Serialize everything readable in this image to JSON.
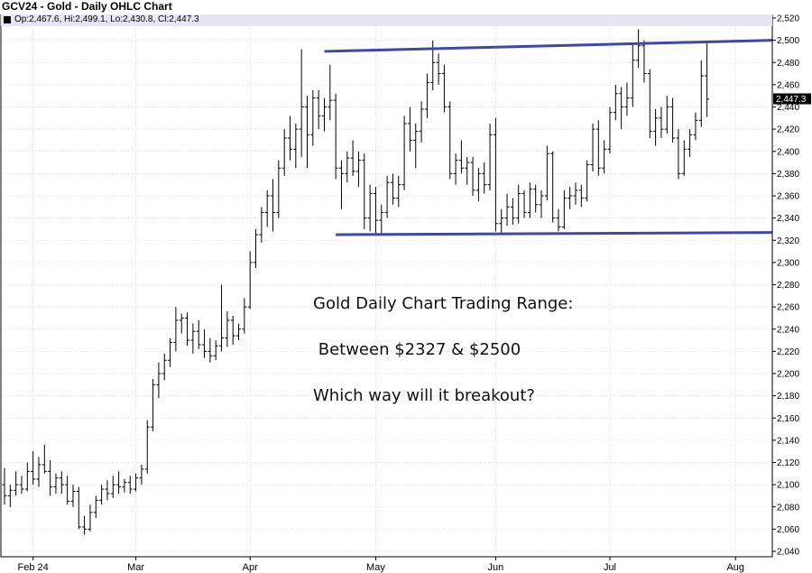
{
  "header": {
    "title": "GCV24 - Gold - Daily OHLC Chart",
    "info": "Op:2,467.6, Hi:2,499.1, Lo:2,430.8, Cl:2,447.3"
  },
  "annotations": {
    "line1": "Gold Daily Chart Trading Range:",
    "line2": " Between $2327 & $2500",
    "line3": "Which way will it breakout?"
  },
  "colors": {
    "bars": "#000000",
    "trendline": "#3f48a8",
    "info_strip": "#e6e6f2",
    "grid": "#c8c8c8"
  },
  "chart_data": {
    "type": "ohlc",
    "title": "GCV24 - Gold - Daily OHLC Chart",
    "ylim": [
      2040,
      2520
    ],
    "y_ticks": [
      2040,
      2060,
      2080,
      2100,
      2120,
      2140,
      2160,
      2180,
      2200,
      2220,
      2240,
      2260,
      2280,
      2300,
      2320,
      2340,
      2360,
      2380,
      2400,
      2420,
      2440,
      2460,
      2480,
      2500,
      2520
    ],
    "x_ticks": [
      {
        "label": "Feb 24",
        "index": 5
      },
      {
        "label": "Mar",
        "index": 23
      },
      {
        "label": "Apr",
        "index": 43
      },
      {
        "label": "May",
        "index": 65
      },
      {
        "label": "Jun",
        "index": 86
      },
      {
        "label": "Jul",
        "index": 106
      },
      {
        "label": "Aug",
        "index": 128
      }
    ],
    "last_price": "2,447.3",
    "grid": true,
    "bars": [
      {
        "o": 2100,
        "h": 2115,
        "l": 2082,
        "c": 2090
      },
      {
        "o": 2090,
        "h": 2100,
        "l": 2080,
        "c": 2095
      },
      {
        "o": 2095,
        "h": 2112,
        "l": 2090,
        "c": 2100
      },
      {
        "o": 2100,
        "h": 2108,
        "l": 2092,
        "c": 2096
      },
      {
        "o": 2096,
        "h": 2120,
        "l": 2094,
        "c": 2112
      },
      {
        "o": 2112,
        "h": 2130,
        "l": 2100,
        "c": 2105
      },
      {
        "o": 2105,
        "h": 2125,
        "l": 2098,
        "c": 2118
      },
      {
        "o": 2118,
        "h": 2136,
        "l": 2110,
        "c": 2112
      },
      {
        "o": 2112,
        "h": 2122,
        "l": 2090,
        "c": 2098
      },
      {
        "o": 2098,
        "h": 2110,
        "l": 2092,
        "c": 2106
      },
      {
        "o": 2106,
        "h": 2112,
        "l": 2092,
        "c": 2100
      },
      {
        "o": 2100,
        "h": 2108,
        "l": 2082,
        "c": 2085
      },
      {
        "o": 2085,
        "h": 2100,
        "l": 2080,
        "c": 2094
      },
      {
        "o": 2094,
        "h": 2098,
        "l": 2060,
        "c": 2062
      },
      {
        "o": 2062,
        "h": 2072,
        "l": 2055,
        "c": 2060
      },
      {
        "o": 2060,
        "h": 2082,
        "l": 2058,
        "c": 2075
      },
      {
        "o": 2075,
        "h": 2090,
        "l": 2070,
        "c": 2086
      },
      {
        "o": 2086,
        "h": 2100,
        "l": 2082,
        "c": 2096
      },
      {
        "o": 2096,
        "h": 2104,
        "l": 2086,
        "c": 2092
      },
      {
        "o": 2092,
        "h": 2108,
        "l": 2088,
        "c": 2100
      },
      {
        "o": 2100,
        "h": 2112,
        "l": 2092,
        "c": 2098
      },
      {
        "o": 2098,
        "h": 2105,
        "l": 2093,
        "c": 2102
      },
      {
        "o": 2102,
        "h": 2108,
        "l": 2092,
        "c": 2096
      },
      {
        "o": 2096,
        "h": 2110,
        "l": 2094,
        "c": 2106
      },
      {
        "o": 2106,
        "h": 2118,
        "l": 2100,
        "c": 2114
      },
      {
        "o": 2114,
        "h": 2158,
        "l": 2110,
        "c": 2152
      },
      {
        "o": 2152,
        "h": 2195,
        "l": 2148,
        "c": 2190
      },
      {
        "o": 2190,
        "h": 2210,
        "l": 2178,
        "c": 2200
      },
      {
        "o": 2200,
        "h": 2218,
        "l": 2194,
        "c": 2212
      },
      {
        "o": 2212,
        "h": 2232,
        "l": 2206,
        "c": 2228
      },
      {
        "o": 2228,
        "h": 2260,
        "l": 2220,
        "c": 2248
      },
      {
        "o": 2248,
        "h": 2254,
        "l": 2236,
        "c": 2250
      },
      {
        "o": 2250,
        "h": 2255,
        "l": 2225,
        "c": 2230
      },
      {
        "o": 2230,
        "h": 2245,
        "l": 2218,
        "c": 2238
      },
      {
        "o": 2238,
        "h": 2248,
        "l": 2222,
        "c": 2226
      },
      {
        "o": 2226,
        "h": 2240,
        "l": 2214,
        "c": 2220
      },
      {
        "o": 2220,
        "h": 2232,
        "l": 2210,
        "c": 2216
      },
      {
        "o": 2216,
        "h": 2230,
        "l": 2212,
        "c": 2225
      },
      {
        "o": 2225,
        "h": 2280,
        "l": 2220,
        "c": 2232
      },
      {
        "o": 2232,
        "h": 2256,
        "l": 2224,
        "c": 2248
      },
      {
        "o": 2248,
        "h": 2252,
        "l": 2226,
        "c": 2234
      },
      {
        "o": 2234,
        "h": 2245,
        "l": 2230,
        "c": 2240
      },
      {
        "o": 2240,
        "h": 2268,
        "l": 2236,
        "c": 2260
      },
      {
        "o": 2260,
        "h": 2310,
        "l": 2258,
        "c": 2300
      },
      {
        "o": 2300,
        "h": 2330,
        "l": 2295,
        "c": 2325
      },
      {
        "o": 2325,
        "h": 2350,
        "l": 2318,
        "c": 2345
      },
      {
        "o": 2345,
        "h": 2365,
        "l": 2332,
        "c": 2360
      },
      {
        "o": 2360,
        "h": 2375,
        "l": 2328,
        "c": 2345
      },
      {
        "o": 2345,
        "h": 2392,
        "l": 2340,
        "c": 2385
      },
      {
        "o": 2385,
        "h": 2420,
        "l": 2378,
        "c": 2412
      },
      {
        "o": 2412,
        "h": 2432,
        "l": 2392,
        "c": 2402
      },
      {
        "o": 2402,
        "h": 2425,
        "l": 2385,
        "c": 2420
      },
      {
        "o": 2420,
        "h": 2492,
        "l": 2395,
        "c": 2440
      },
      {
        "o": 2440,
        "h": 2450,
        "l": 2385,
        "c": 2415
      },
      {
        "o": 2415,
        "h": 2455,
        "l": 2405,
        "c": 2448
      },
      {
        "o": 2448,
        "h": 2455,
        "l": 2420,
        "c": 2432
      },
      {
        "o": 2432,
        "h": 2448,
        "l": 2418,
        "c": 2440
      },
      {
        "o": 2440,
        "h": 2478,
        "l": 2428,
        "c": 2446
      },
      {
        "o": 2446,
        "h": 2452,
        "l": 2375,
        "c": 2385
      },
      {
        "o": 2385,
        "h": 2392,
        "l": 2348,
        "c": 2380
      },
      {
        "o": 2380,
        "h": 2400,
        "l": 2372,
        "c": 2394
      },
      {
        "o": 2394,
        "h": 2410,
        "l": 2378,
        "c": 2382
      },
      {
        "o": 2382,
        "h": 2400,
        "l": 2368,
        "c": 2392
      },
      {
        "o": 2392,
        "h": 2398,
        "l": 2330,
        "c": 2340
      },
      {
        "o": 2340,
        "h": 2370,
        "l": 2328,
        "c": 2362
      },
      {
        "o": 2362,
        "h": 2368,
        "l": 2325,
        "c": 2338
      },
      {
        "o": 2338,
        "h": 2352,
        "l": 2326,
        "c": 2345
      },
      {
        "o": 2345,
        "h": 2378,
        "l": 2340,
        "c": 2372
      },
      {
        "o": 2372,
        "h": 2380,
        "l": 2352,
        "c": 2358
      },
      {
        "o": 2358,
        "h": 2378,
        "l": 2350,
        "c": 2370
      },
      {
        "o": 2370,
        "h": 2432,
        "l": 2365,
        "c": 2425
      },
      {
        "o": 2425,
        "h": 2440,
        "l": 2400,
        "c": 2410
      },
      {
        "o": 2410,
        "h": 2425,
        "l": 2385,
        "c": 2418
      },
      {
        "o": 2418,
        "h": 2445,
        "l": 2408,
        "c": 2438
      },
      {
        "o": 2438,
        "h": 2470,
        "l": 2430,
        "c": 2462
      },
      {
        "o": 2462,
        "h": 2500,
        "l": 2455,
        "c": 2480
      },
      {
        "o": 2480,
        "h": 2488,
        "l": 2460,
        "c": 2470
      },
      {
        "o": 2470,
        "h": 2478,
        "l": 2435,
        "c": 2440
      },
      {
        "o": 2440,
        "h": 2445,
        "l": 2375,
        "c": 2380
      },
      {
        "o": 2380,
        "h": 2398,
        "l": 2370,
        "c": 2392
      },
      {
        "o": 2392,
        "h": 2410,
        "l": 2380,
        "c": 2385
      },
      {
        "o": 2385,
        "h": 2395,
        "l": 2370,
        "c": 2390
      },
      {
        "o": 2390,
        "h": 2395,
        "l": 2360,
        "c": 2365
      },
      {
        "o": 2365,
        "h": 2385,
        "l": 2355,
        "c": 2380
      },
      {
        "o": 2380,
        "h": 2390,
        "l": 2362,
        "c": 2370
      },
      {
        "o": 2370,
        "h": 2425,
        "l": 2365,
        "c": 2415
      },
      {
        "o": 2415,
        "h": 2430,
        "l": 2328,
        "c": 2335
      },
      {
        "o": 2335,
        "h": 2348,
        "l": 2326,
        "c": 2340
      },
      {
        "o": 2340,
        "h": 2362,
        "l": 2333,
        "c": 2350
      },
      {
        "o": 2350,
        "h": 2358,
        "l": 2334,
        "c": 2340
      },
      {
        "o": 2340,
        "h": 2370,
        "l": 2335,
        "c": 2362
      },
      {
        "o": 2362,
        "h": 2365,
        "l": 2340,
        "c": 2345
      },
      {
        "o": 2345,
        "h": 2372,
        "l": 2340,
        "c": 2366
      },
      {
        "o": 2366,
        "h": 2370,
        "l": 2345,
        "c": 2352
      },
      {
        "o": 2352,
        "h": 2365,
        "l": 2340,
        "c": 2360
      },
      {
        "o": 2360,
        "h": 2405,
        "l": 2356,
        "c": 2398
      },
      {
        "o": 2398,
        "h": 2400,
        "l": 2336,
        "c": 2340
      },
      {
        "o": 2340,
        "h": 2348,
        "l": 2328,
        "c": 2332
      },
      {
        "o": 2332,
        "h": 2365,
        "l": 2330,
        "c": 2358
      },
      {
        "o": 2358,
        "h": 2368,
        "l": 2348,
        "c": 2360
      },
      {
        "o": 2360,
        "h": 2372,
        "l": 2352,
        "c": 2365
      },
      {
        "o": 2365,
        "h": 2370,
        "l": 2350,
        "c": 2358
      },
      {
        "o": 2358,
        "h": 2392,
        "l": 2355,
        "c": 2388
      },
      {
        "o": 2388,
        "h": 2425,
        "l": 2382,
        "c": 2420
      },
      {
        "o": 2420,
        "h": 2428,
        "l": 2378,
        "c": 2385
      },
      {
        "o": 2385,
        "h": 2410,
        "l": 2380,
        "c": 2402
      },
      {
        "o": 2402,
        "h": 2440,
        "l": 2398,
        "c": 2435
      },
      {
        "o": 2435,
        "h": 2460,
        "l": 2428,
        "c": 2452
      },
      {
        "o": 2452,
        "h": 2458,
        "l": 2420,
        "c": 2440
      },
      {
        "o": 2440,
        "h": 2462,
        "l": 2432,
        "c": 2448
      },
      {
        "o": 2448,
        "h": 2498,
        "l": 2440,
        "c": 2482
      },
      {
        "o": 2482,
        "h": 2510,
        "l": 2475,
        "c": 2495
      },
      {
        "o": 2495,
        "h": 2500,
        "l": 2462,
        "c": 2470
      },
      {
        "o": 2470,
        "h": 2474,
        "l": 2412,
        "c": 2418
      },
      {
        "o": 2418,
        "h": 2438,
        "l": 2405,
        "c": 2430
      },
      {
        "o": 2430,
        "h": 2440,
        "l": 2412,
        "c": 2420
      },
      {
        "o": 2420,
        "h": 2450,
        "l": 2416,
        "c": 2440
      },
      {
        "o": 2440,
        "h": 2448,
        "l": 2408,
        "c": 2412
      },
      {
        "o": 2412,
        "h": 2420,
        "l": 2375,
        "c": 2380
      },
      {
        "o": 2380,
        "h": 2410,
        "l": 2378,
        "c": 2402
      },
      {
        "o": 2402,
        "h": 2420,
        "l": 2395,
        "c": 2415
      },
      {
        "o": 2415,
        "h": 2435,
        "l": 2410,
        "c": 2428
      },
      {
        "o": 2428,
        "h": 2482,
        "l": 2422,
        "c": 2468
      },
      {
        "o": 2468,
        "h": 2499,
        "l": 2431,
        "c": 2447
      }
    ],
    "trendlines": [
      {
        "name": "resistance",
        "x0": 56,
        "y0": 2490,
        "x1": 138,
        "y1": 2500
      },
      {
        "name": "support",
        "x0": 58,
        "y0": 2325,
        "x1": 138,
        "y1": 2327
      }
    ]
  }
}
